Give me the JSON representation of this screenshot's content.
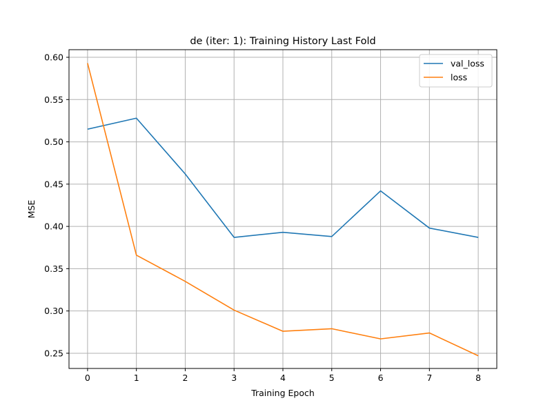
{
  "chart_data": {
    "type": "line",
    "title": "de (iter: 1): Training History Last Fold",
    "xlabel": "Training Epoch",
    "ylabel": "MSE",
    "x": [
      0,
      1,
      2,
      3,
      4,
      5,
      6,
      7,
      8
    ],
    "xlim": [
      -0.38,
      8.38
    ],
    "ylim": [
      0.232,
      0.609
    ],
    "xticks": [
      0,
      1,
      2,
      3,
      4,
      5,
      6,
      7,
      8
    ],
    "yticks": [
      0.25,
      0.3,
      0.35,
      0.4,
      0.45,
      0.5,
      0.55,
      0.6
    ],
    "ytick_labels": [
      "0.25",
      "0.30",
      "0.35",
      "0.40",
      "0.45",
      "0.50",
      "0.55",
      "0.60"
    ],
    "grid": true,
    "legend_position": "top-right",
    "series": [
      {
        "name": "val_loss",
        "color": "#1f77b4",
        "values": [
          0.515,
          0.528,
          0.462,
          0.387,
          0.393,
          0.388,
          0.442,
          0.398,
          0.387
        ]
      },
      {
        "name": "loss",
        "color": "#ff7f0e",
        "values": [
          0.593,
          0.366,
          0.335,
          0.301,
          0.276,
          0.279,
          0.267,
          0.274,
          0.247
        ]
      }
    ]
  }
}
